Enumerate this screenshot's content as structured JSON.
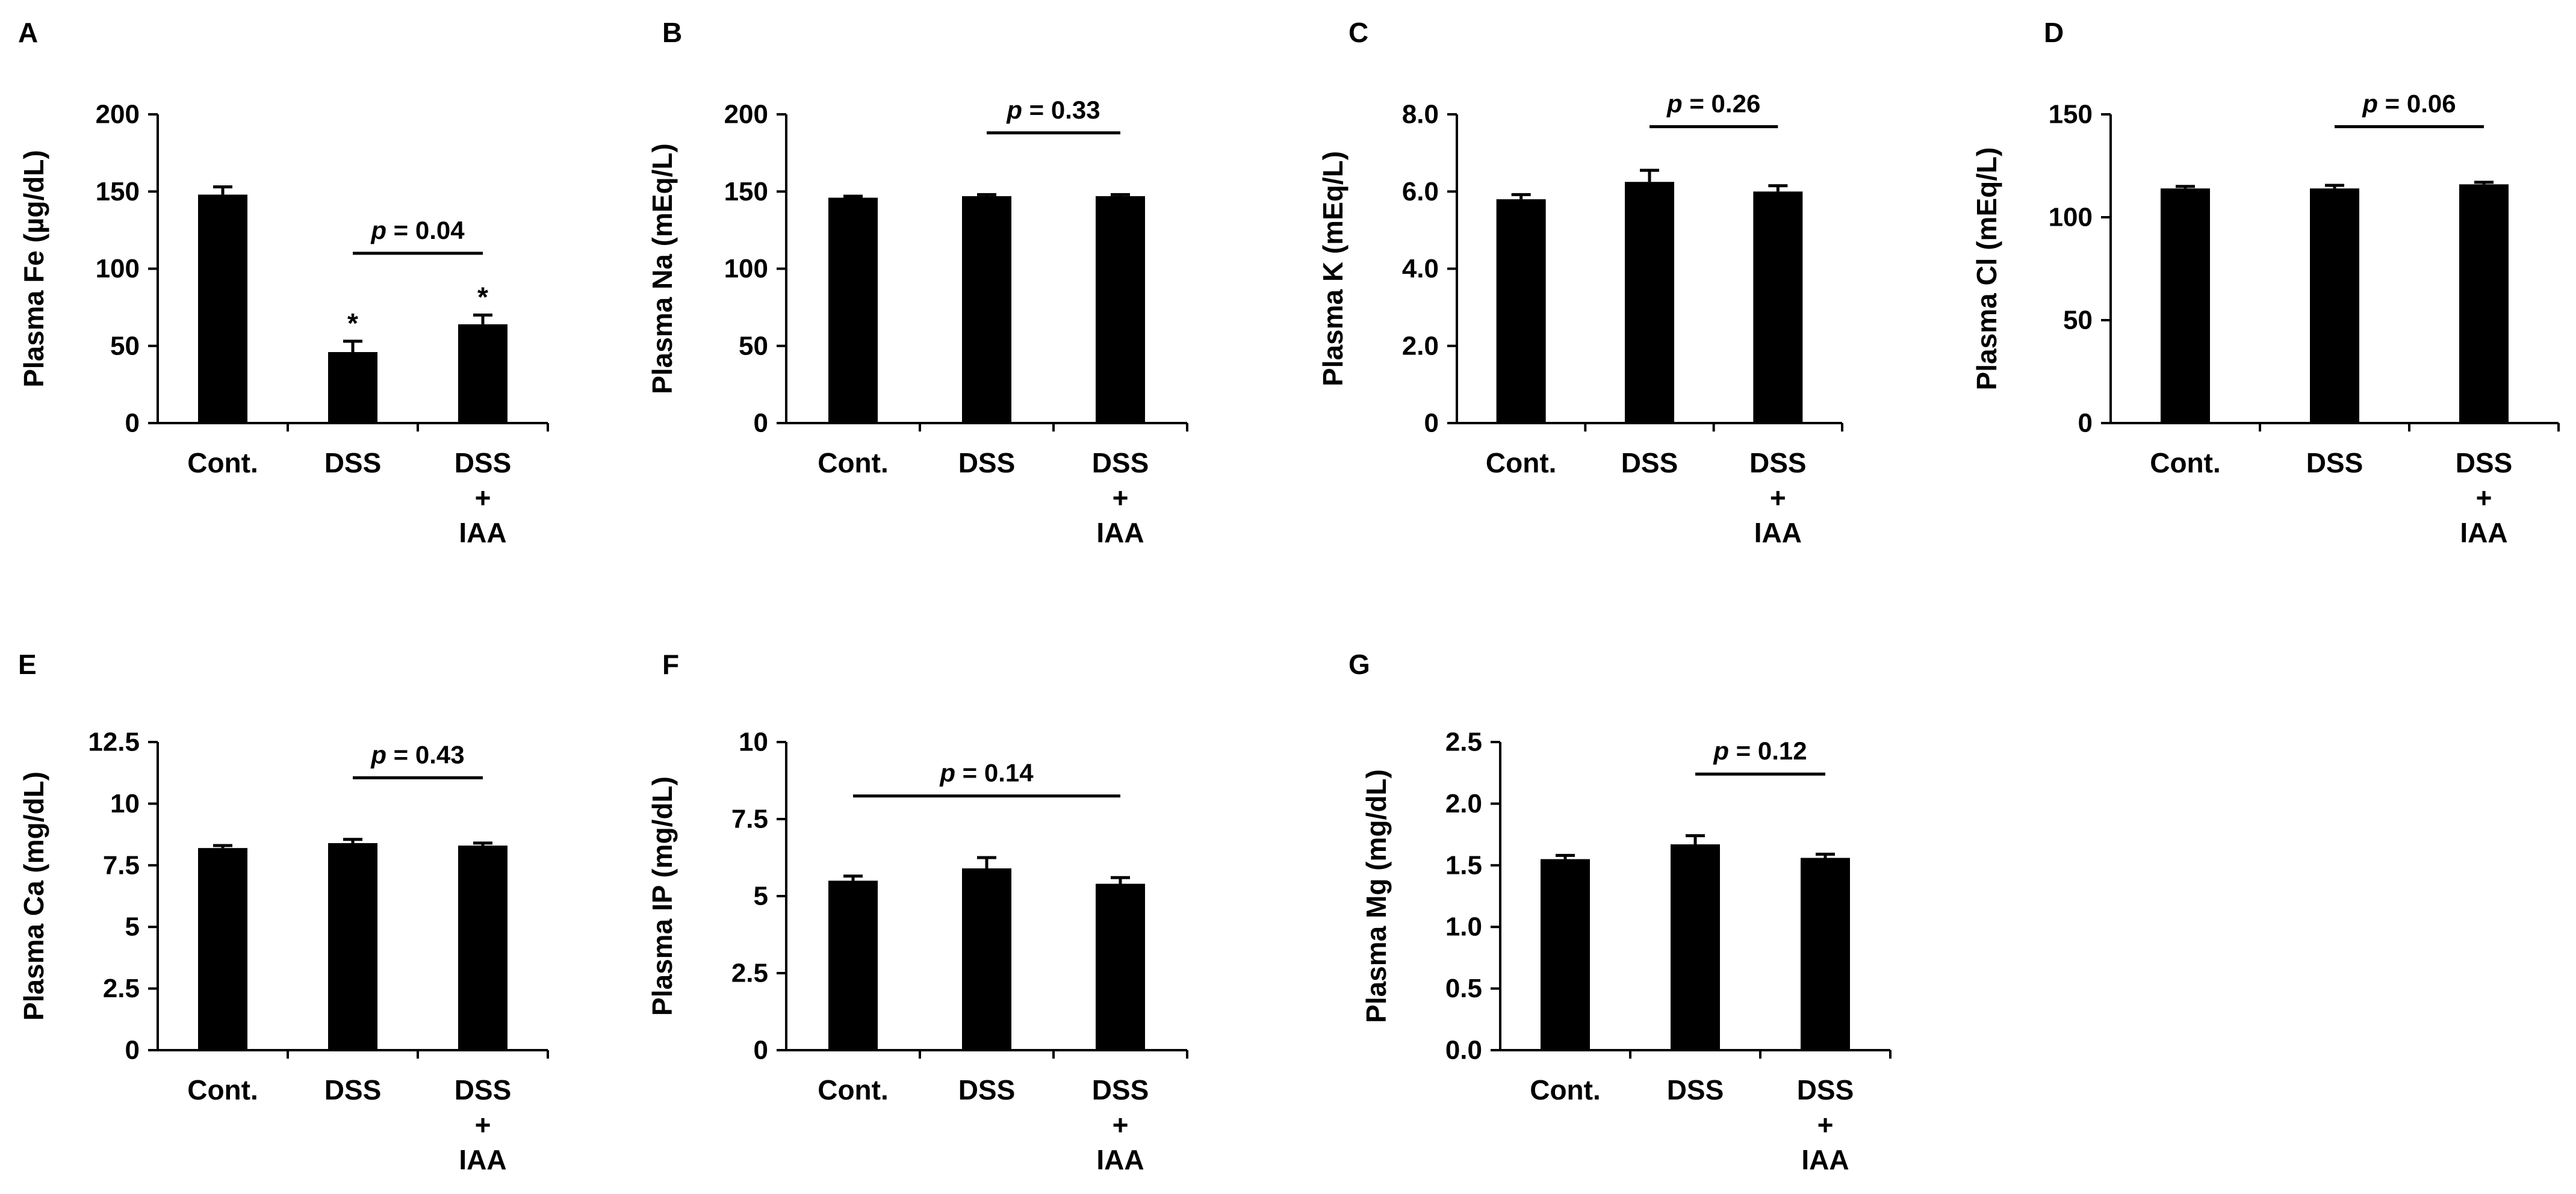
{
  "figure": {
    "background": "#ffffff",
    "bar_color": "#000000"
  },
  "chart_data": [
    {
      "type": "bar",
      "panel": "A",
      "categories": [
        "Cont.",
        "DSS",
        "DSS\n+\nIAA"
      ],
      "values": [
        148,
        46,
        64
      ],
      "errors": [
        5,
        7,
        6
      ],
      "ylabel": "Plasma Fe (µg/dL)",
      "ylim": [
        0,
        200
      ],
      "yticks": [
        0,
        50,
        100,
        150,
        200
      ],
      "ytick_labels": [
        "0",
        "50",
        "100",
        "150",
        "200"
      ],
      "markers": [
        "",
        "*",
        "*"
      ],
      "comparison": {
        "from": 1,
        "to": 2,
        "italic": "p",
        "text": " = 0.04"
      },
      "grid": false,
      "legend": "none"
    },
    {
      "type": "bar",
      "panel": "B",
      "categories": [
        "Cont.",
        "DSS",
        "DSS\n+\nIAA"
      ],
      "values": [
        146,
        147,
        147
      ],
      "errors": [
        1,
        1,
        1
      ],
      "ylabel": "Plasma Na (mEq/L)",
      "ylim": [
        0,
        200
      ],
      "yticks": [
        0,
        50,
        100,
        150,
        200
      ],
      "ytick_labels": [
        "0",
        "50",
        "100",
        "150",
        "200"
      ],
      "markers": [
        "",
        "",
        ""
      ],
      "comparison": {
        "from": 1,
        "to": 2,
        "italic": "p",
        "text": " = 0.33"
      },
      "grid": false,
      "legend": "none"
    },
    {
      "type": "bar",
      "panel": "C",
      "categories": [
        "Cont.",
        "DSS",
        "DSS\n+\nIAA"
      ],
      "values": [
        5.8,
        6.25,
        6.0
      ],
      "errors": [
        0.12,
        0.3,
        0.15
      ],
      "ylabel": "Plasma K (mEq/L)",
      "ylim": [
        0,
        8
      ],
      "yticks": [
        0,
        2,
        4,
        6,
        8
      ],
      "ytick_labels": [
        "0",
        "2.0",
        "4.0",
        "6.0",
        "8.0"
      ],
      "markers": [
        "",
        "",
        ""
      ],
      "comparison": {
        "from": 1,
        "to": 2,
        "italic": "p",
        "text": " = 0.26"
      },
      "grid": false,
      "legend": "none"
    },
    {
      "type": "bar",
      "panel": "D",
      "categories": [
        "Cont.",
        "DSS",
        "DSS\n+\nIAA"
      ],
      "values": [
        114,
        114,
        116
      ],
      "errors": [
        1,
        1.5,
        1
      ],
      "ylabel": "Plasma Cl (mEq/L)",
      "ylim": [
        0,
        150
      ],
      "yticks": [
        0,
        50,
        100,
        150
      ],
      "ytick_labels": [
        "0",
        "50",
        "100",
        "150"
      ],
      "markers": [
        "",
        "",
        ""
      ],
      "comparison": {
        "from": 1,
        "to": 2,
        "italic": "p",
        "text": " = 0.06"
      },
      "grid": false,
      "legend": "none"
    },
    {
      "type": "bar",
      "panel": "E",
      "categories": [
        "Cont.",
        "DSS",
        "DSS\n+\nIAA"
      ],
      "values": [
        8.2,
        8.4,
        8.3
      ],
      "errors": [
        0.1,
        0.15,
        0.1
      ],
      "ylabel": "Plasma Ca (mg/dL)",
      "ylim": [
        0,
        12.5
      ],
      "yticks": [
        0,
        2.5,
        5,
        7.5,
        10,
        12.5
      ],
      "ytick_labels": [
        "0",
        "2.5",
        "5",
        "7.5",
        "10",
        "12.5"
      ],
      "markers": [
        "",
        "",
        ""
      ],
      "comparison": {
        "from": 1,
        "to": 2,
        "italic": "p",
        "text": " = 0.43"
      },
      "grid": false,
      "legend": "none"
    },
    {
      "type": "bar",
      "panel": "F",
      "categories": [
        "Cont.",
        "DSS",
        "DSS\n+\nIAA"
      ],
      "values": [
        5.5,
        5.9,
        5.4
      ],
      "errors": [
        0.15,
        0.35,
        0.2
      ],
      "ylabel": "Plasma IP (mg/dL)",
      "ylim": [
        0,
        10
      ],
      "yticks": [
        0,
        2.5,
        5,
        7.5,
        10
      ],
      "ytick_labels": [
        "0",
        "2.5",
        "5",
        "7.5",
        "10"
      ],
      "markers": [
        "",
        "",
        ""
      ],
      "comparison": {
        "from": 0,
        "to": 2,
        "italic": "p",
        "text": " = 0.14"
      },
      "grid": false,
      "legend": "none"
    },
    {
      "type": "bar",
      "panel": "G",
      "categories": [
        "Cont.",
        "DSS",
        "DSS\n+\nIAA"
      ],
      "values": [
        1.55,
        1.67,
        1.56
      ],
      "errors": [
        0.03,
        0.07,
        0.03
      ],
      "ylabel": "Plasma Mg (mg/dL)",
      "ylim": [
        0,
        2.5
      ],
      "yticks": [
        0,
        0.5,
        1,
        1.5,
        2,
        2.5
      ],
      "ytick_labels": [
        "0.0",
        "0.5",
        "1.0",
        "1.5",
        "2.0",
        "2.5"
      ],
      "markers": [
        "",
        "",
        ""
      ],
      "comparison": {
        "from": 1,
        "to": 2,
        "italic": "p",
        "text": " = 0.12"
      },
      "grid": false,
      "legend": "none"
    }
  ]
}
